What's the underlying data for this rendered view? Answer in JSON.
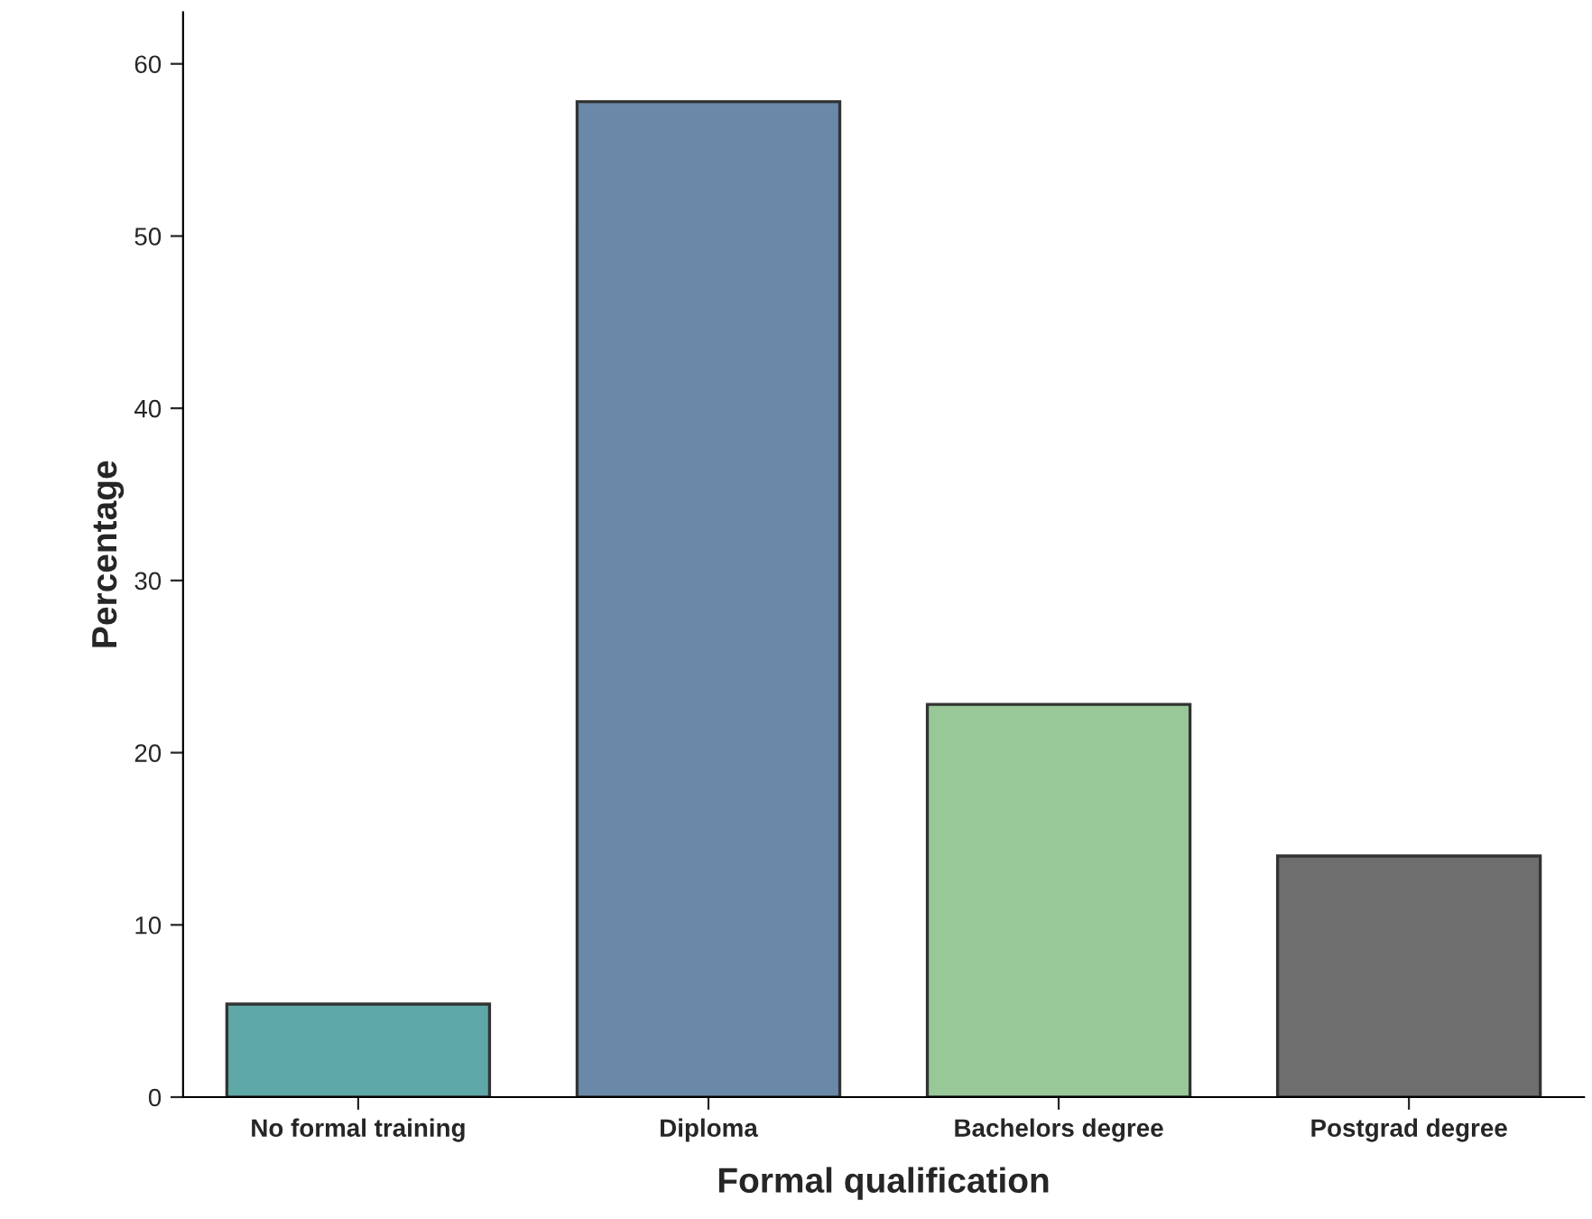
{
  "chart_data": {
    "type": "bar",
    "xlabel": "Formal qualification",
    "ylabel": "Percentage",
    "categories": [
      "No formal training",
      "Diploma",
      "Bachelors degree",
      "Postgrad degree"
    ],
    "values": [
      5.4,
      57.8,
      22.8,
      14.0
    ],
    "colors": [
      "#5fa8a8",
      "#6a89a8",
      "#98c898",
      "#6e6e6e"
    ],
    "ylim": [
      0,
      63
    ],
    "yticks": [
      0,
      10,
      20,
      30,
      40,
      50,
      60
    ],
    "grid": false,
    "legend": false
  }
}
